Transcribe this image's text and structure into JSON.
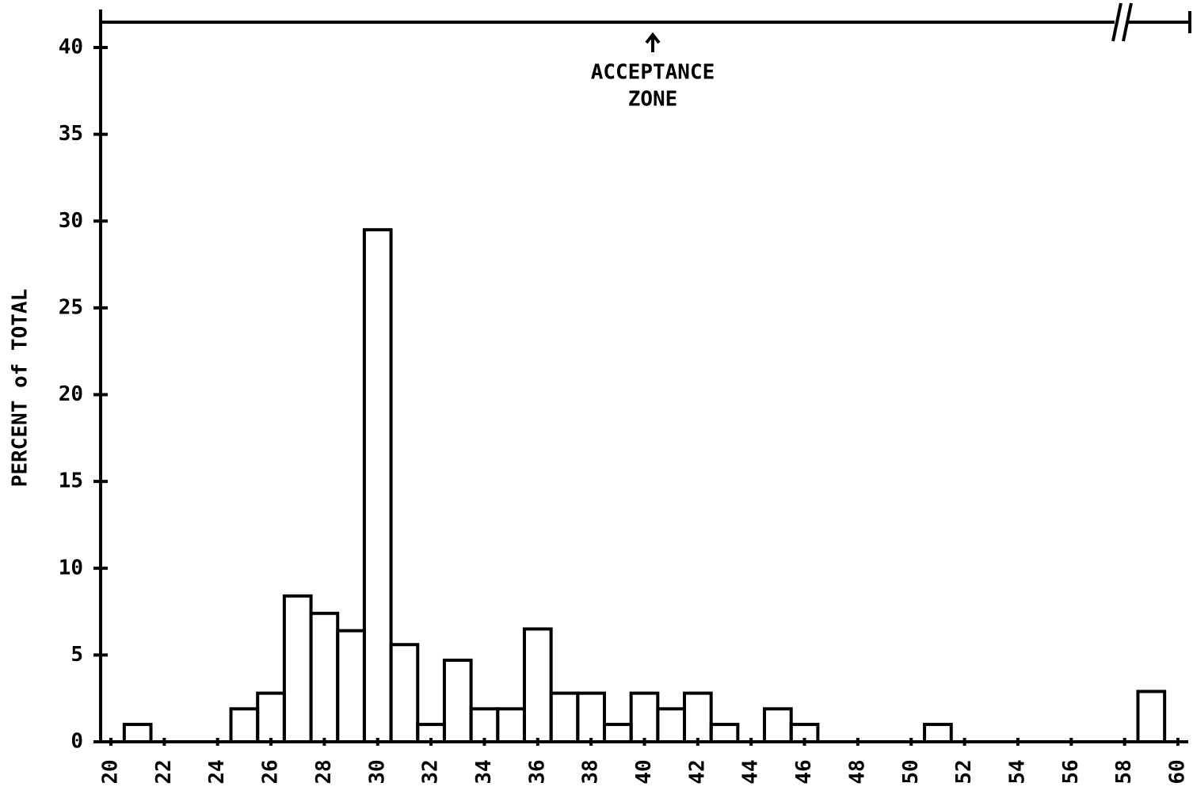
{
  "chart_data": {
    "type": "histogram",
    "y_label": "PERCENT of TOTAL",
    "annotation": [
      "ACCEPTANCE",
      "ZONE"
    ],
    "bins": [
      20.5,
      21.5,
      22.5,
      23.5,
      24.5,
      25.5,
      26.5,
      27.5,
      28.5,
      29.5,
      30.5,
      31.5,
      32.5,
      33.5,
      34.5,
      35.5,
      36.5,
      37.5,
      38.5,
      39.5,
      40.5,
      41.5,
      42.5,
      43.5,
      44.5,
      45.5,
      46.5,
      47.5,
      48.5,
      49.5,
      50.5,
      51.5,
      52.5,
      53.5,
      54.5,
      55.5,
      56.5,
      57.5,
      58.5,
      59.5
    ],
    "values": [
      1,
      0,
      0,
      0,
      1.9,
      2.8,
      8.4,
      7.4,
      6.4,
      29.5,
      5.6,
      1,
      4.7,
      1.9,
      1.9,
      6.5,
      2.8,
      2.8,
      1,
      2.8,
      1.9,
      2.8,
      1,
      0,
      1.9,
      1,
      0,
      0,
      0,
      0,
      1,
      0,
      0,
      0,
      0,
      0,
      0,
      0,
      2.9
    ],
    "color": "#000000",
    "xlim": [
      20,
      60
    ],
    "xticks": [
      20,
      22,
      24,
      26,
      28,
      30,
      32,
      34,
      36,
      38,
      40,
      42,
      44,
      46,
      48,
      50,
      52,
      54,
      56,
      58,
      60
    ],
    "ylim": [
      0,
      40
    ],
    "yticks": [
      0,
      5,
      10,
      15,
      20,
      25,
      30,
      35,
      40
    ],
    "grid": false
  }
}
